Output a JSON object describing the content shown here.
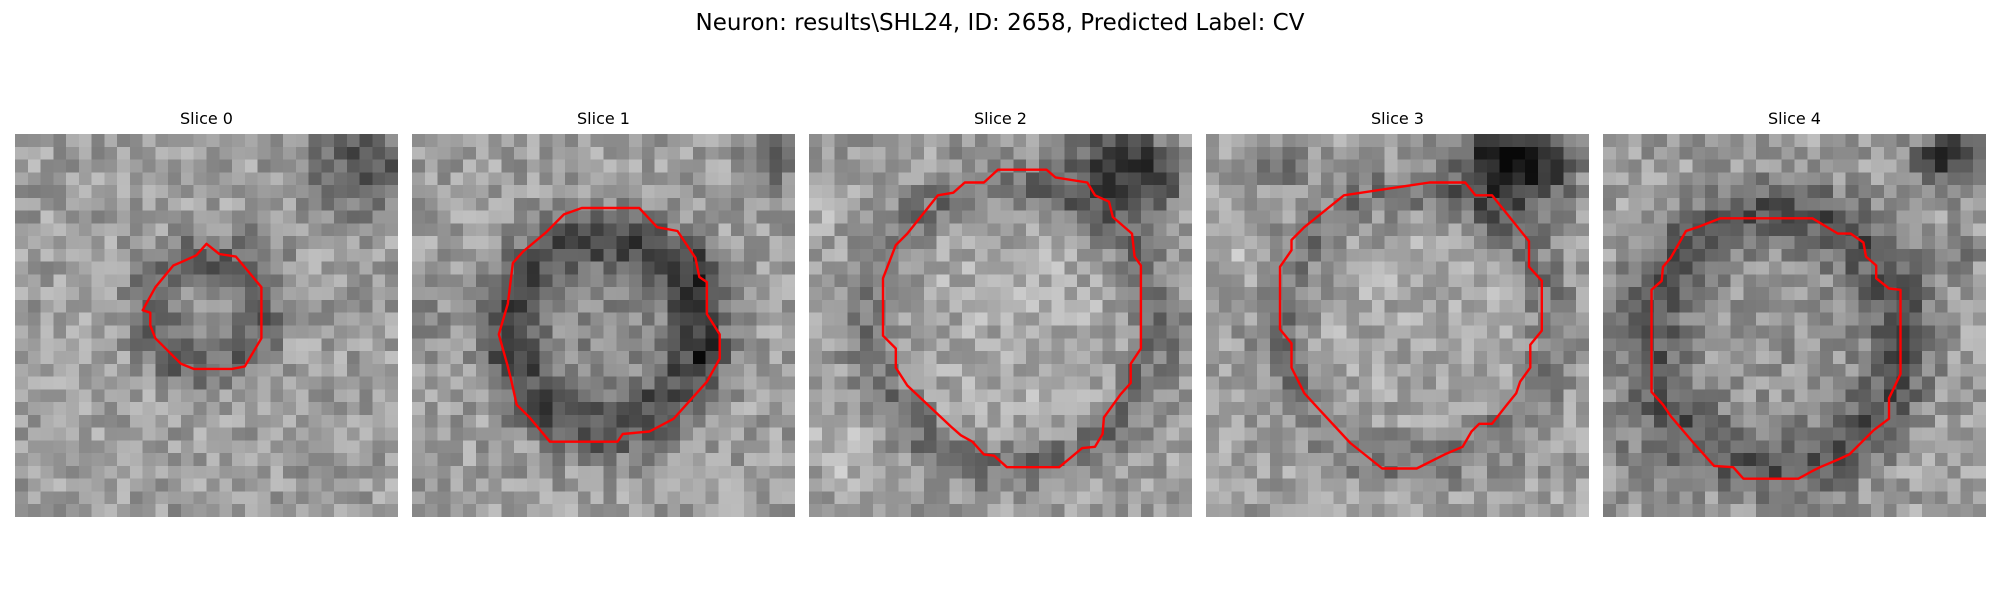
{
  "figure": {
    "title": "Neuron: results\\SHL24, ID: 2658, Predicted Label: CV",
    "contour_color": "#ff0000"
  },
  "panels": [
    {
      "title": "Slice 0"
    },
    {
      "title": "Slice 1"
    },
    {
      "title": "Slice 2"
    },
    {
      "title": "Slice 3"
    },
    {
      "title": "Slice 4"
    }
  ]
}
